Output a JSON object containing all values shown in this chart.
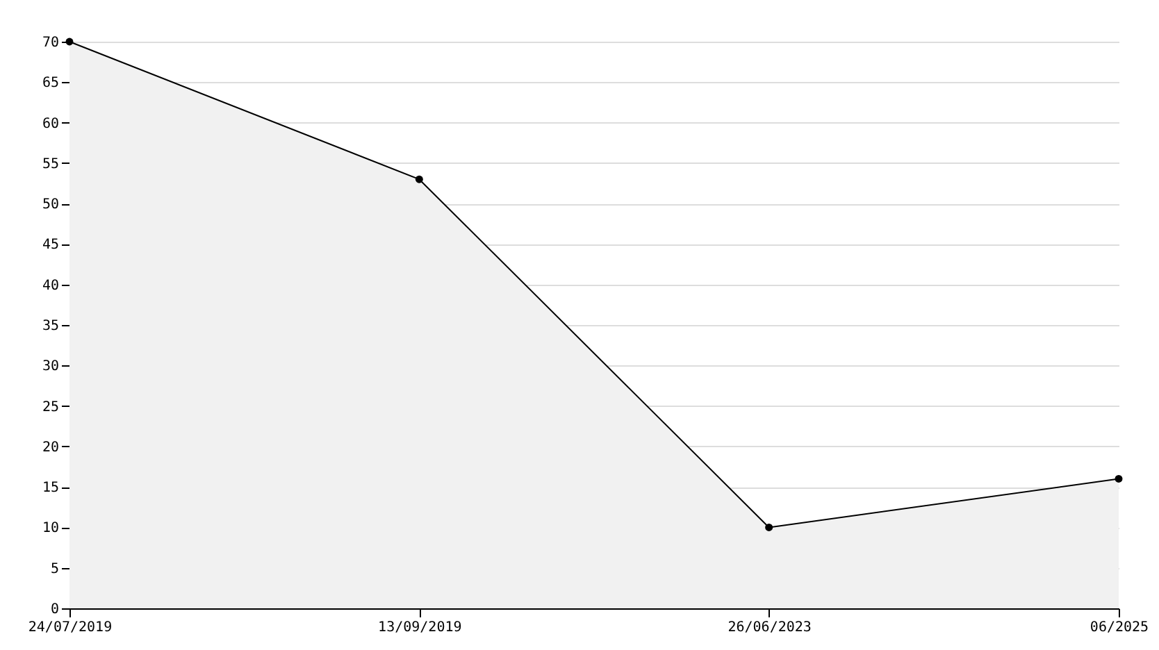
{
  "chart_data": {
    "type": "area",
    "categories": [
      "24/07/2019",
      "13/09/2019",
      "26/06/2023",
      "06/2025"
    ],
    "values": [
      70,
      53,
      10,
      16
    ],
    "color": "#000000",
    "ylim": [
      0,
      70
    ],
    "yticks": [
      0,
      5,
      10,
      15,
      20,
      25,
      30,
      35,
      40,
      45,
      50,
      55,
      60,
      65,
      70
    ],
    "grid": "y",
    "marker": "circle"
  }
}
